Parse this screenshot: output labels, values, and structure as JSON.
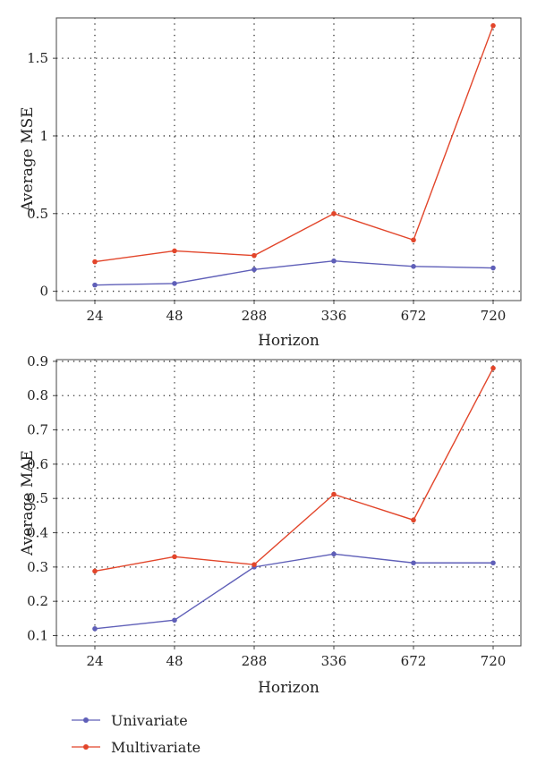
{
  "colors": {
    "univariate": "#5f5fb8",
    "multivariate": "#e2452a"
  },
  "legend": {
    "placement": "bottom-left",
    "items": [
      {
        "label": "Univariate",
        "color": "#5f5fb8"
      },
      {
        "label": "Multivariate",
        "color": "#e2452a"
      }
    ]
  },
  "chart_data": [
    {
      "type": "line",
      "title": "",
      "xlabel": "Horizon",
      "ylabel": "Average MSE",
      "categories": [
        "24",
        "48",
        "288",
        "336",
        "672",
        "720"
      ],
      "ylim": [
        -0.06,
        1.76
      ],
      "yticks": [
        0,
        0.5,
        1,
        1.5
      ],
      "ytick_labels": [
        "0",
        "0.5",
        "1",
        "1.5"
      ],
      "grid": true,
      "series": [
        {
          "name": "Univariate",
          "values": [
            0.04,
            0.05,
            0.14,
            0.195,
            0.16,
            0.15
          ]
        },
        {
          "name": "Multivariate",
          "values": [
            0.19,
            0.26,
            0.23,
            0.5,
            0.33,
            1.71
          ]
        }
      ]
    },
    {
      "type": "line",
      "title": "",
      "xlabel": "Horizon",
      "ylabel": "Average MAE",
      "categories": [
        "24",
        "48",
        "288",
        "336",
        "672",
        "720"
      ],
      "ylim": [
        0.07,
        0.905
      ],
      "yticks": [
        0.1,
        0.2,
        0.3,
        0.4,
        0.5,
        0.6,
        0.7,
        0.8,
        0.9
      ],
      "ytick_labels": [
        "0.1",
        "0.2",
        "0.3",
        "0.4",
        "0.5",
        "0.6",
        "0.7",
        "0.8",
        "0.9"
      ],
      "grid": true,
      "series": [
        {
          "name": "Univariate",
          "values": [
            0.12,
            0.145,
            0.3,
            0.338,
            0.312,
            0.312
          ]
        },
        {
          "name": "Multivariate",
          "values": [
            0.288,
            0.33,
            0.307,
            0.512,
            0.437,
            0.88
          ]
        }
      ]
    }
  ]
}
